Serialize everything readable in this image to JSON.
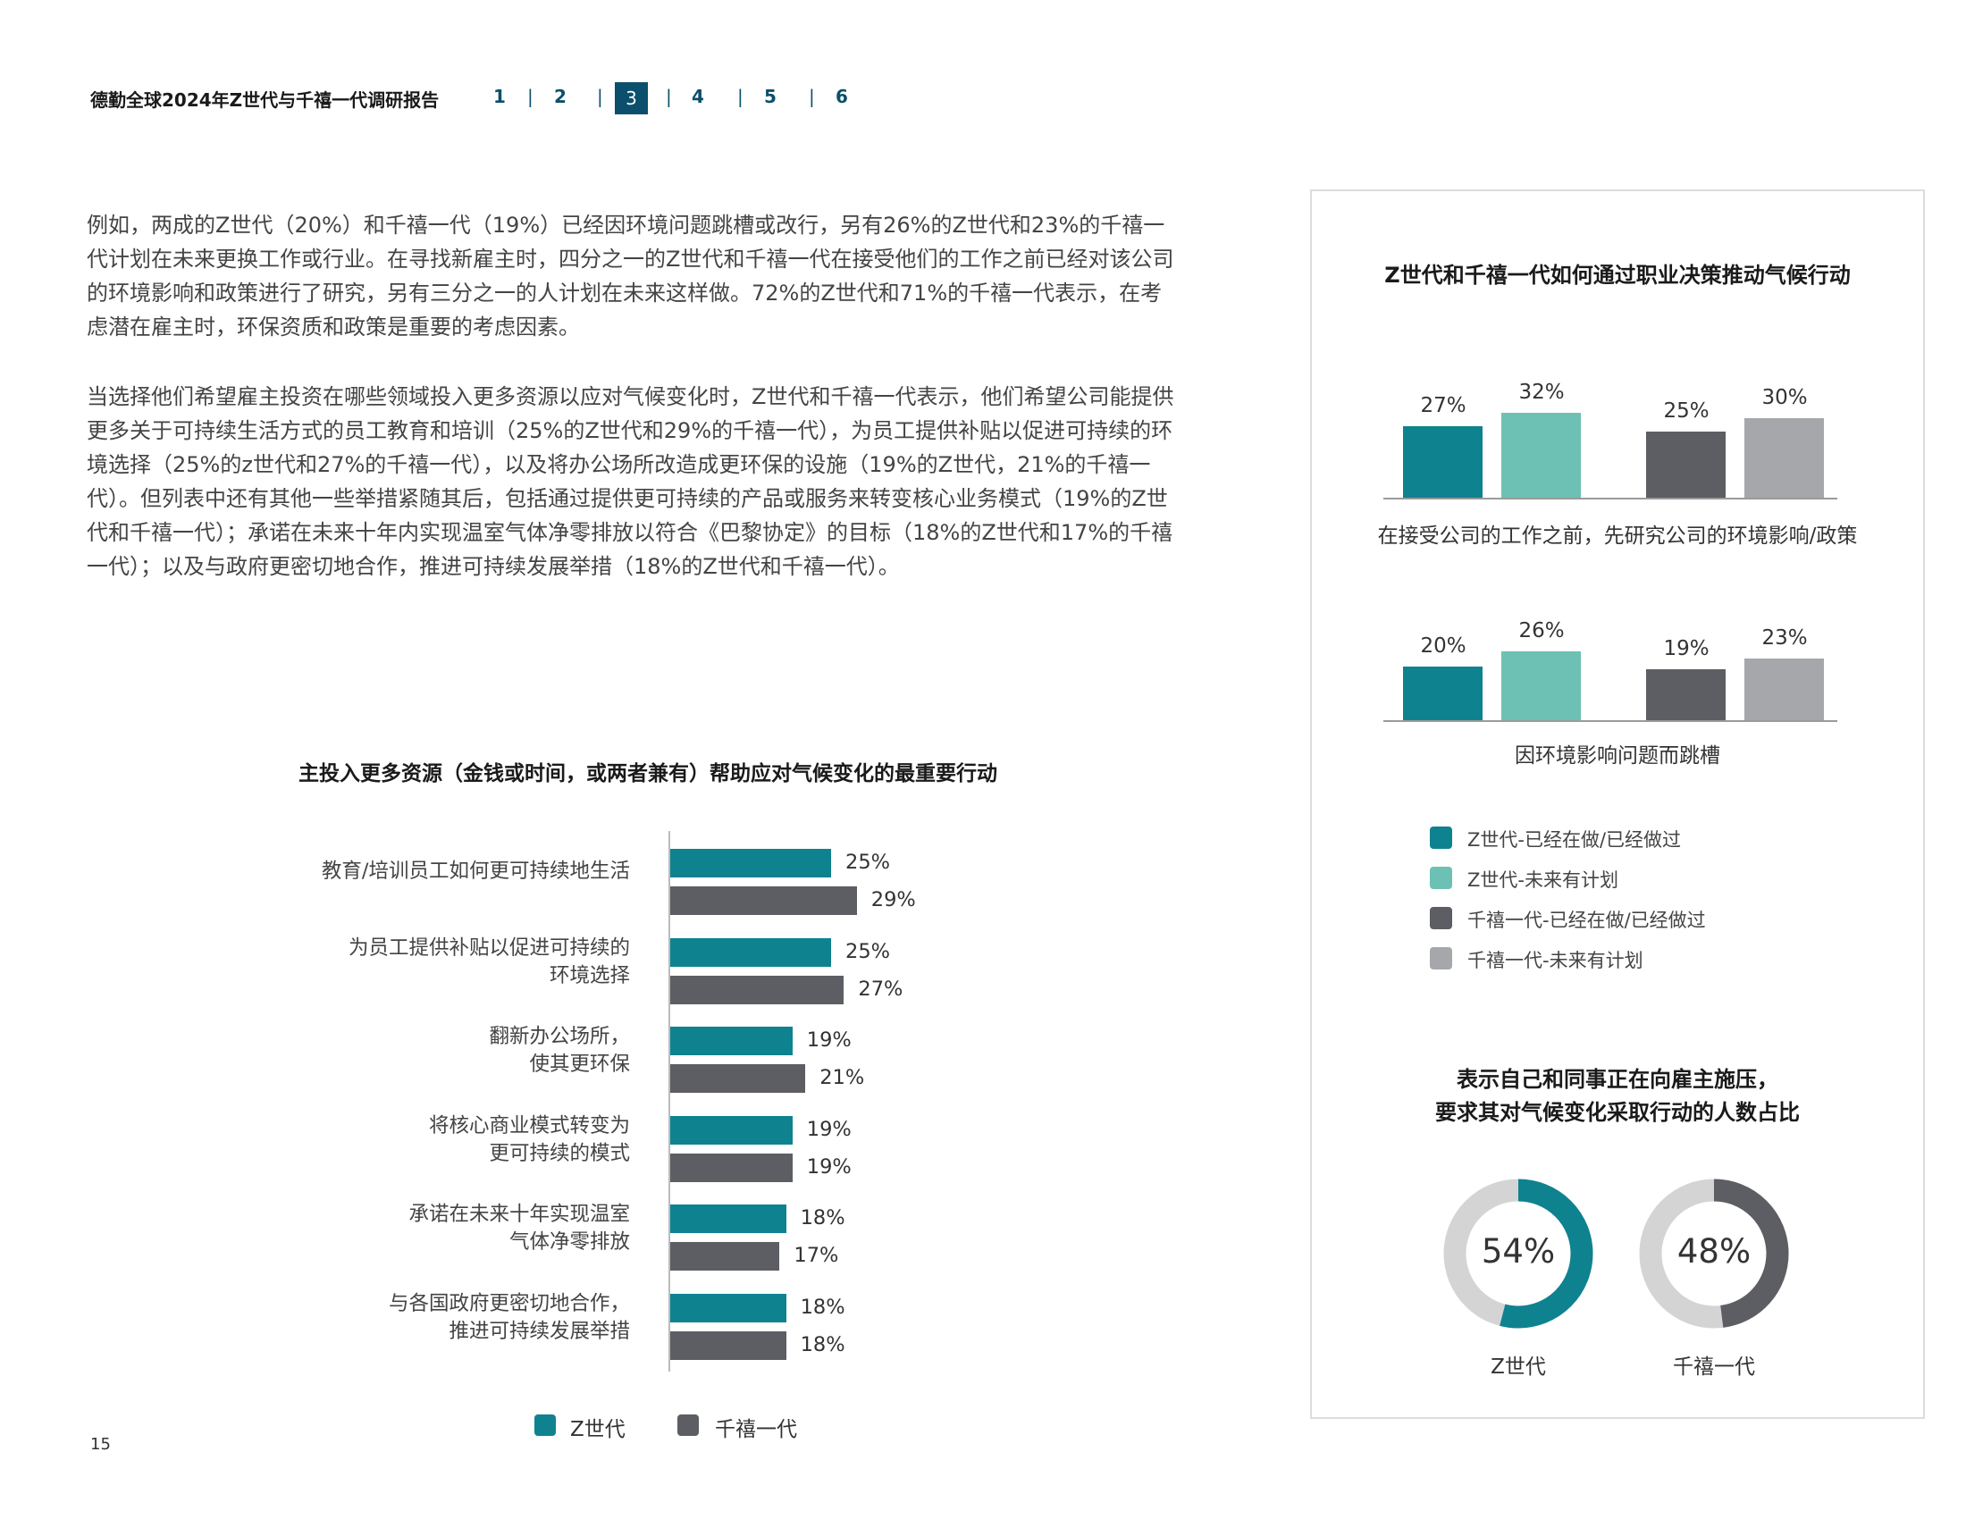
{
  "header": {
    "title": "德勤全球2024年Z世代与千禧一代调研报告",
    "nav": [
      "1",
      "2",
      "3",
      "4",
      "5",
      "6"
    ],
    "active": "3"
  },
  "body": {
    "paragraph1": "例如，两成的Z世代（20%）和千禧一代（19%）已经因环境问题跳槽或改行，另有26%的Z世代和23%的千禧一代计划在未来更换工作或行业。在寻找新雇主时，四分之一的Z世代和千禧一代在接受他们的工作之前已经对该公司的环境影响和政策进行了研究，另有三分之一的人计划在未来这样做。72%的Z世代和71%的千禧一代表示，在考虑潜在雇主时，环保资质和政策是重要的考虑因素。",
    "paragraph2": "当选择他们希望雇主投资在哪些领域投入更多资源以应对气候变化时，Z世代和千禧一代表示，他们希望公司能提供更多关于可持续生活方式的员工教育和培训（25%的Z世代和29%的千禧一代），为员工提供补贴以促进可持续的环境选择（25%的z世代和27%的千禧一代），以及将办公场所改造成更环保的设施（19%的Z世代，21%的千禧一代）。但列表中还有其他一些举措紧随其后，包括通过提供更可持续的产品或服务来转变核心业务模式（19%的Z世代和千禧一代）；承诺在未来十年内实现温室气体净零排放以符合《巴黎协定》的目标（18%的Z世代和17%的千禧一代）；以及与政府更密切地合作，推进可持续发展举措（18%的Z世代和千禧一代）。"
  },
  "chart_data": [
    {
      "type": "bar",
      "orientation": "horizontal",
      "title": "主投入更多资源（金钱或时间，或两者兼有）帮助应对气候变化的最重要行动",
      "categories": [
        [
          "教育/培训员工如何更可持续地生活"
        ],
        [
          "为员工提供补贴以促进可持续的",
          "环境选择"
        ],
        [
          "翻新办公场所，",
          "使其更环保"
        ],
        [
          "将核心商业模式转变为",
          "更可持续的模式"
        ],
        [
          "承诺在未来十年实现温室",
          "气体净零排放"
        ],
        [
          "与各国政府更密切地合作，",
          "推进可持续发展举措"
        ]
      ],
      "series": [
        {
          "name": "Z世代",
          "color": "#0f8290",
          "values": [
            25,
            25,
            19,
            19,
            18,
            18
          ],
          "labels": [
            "25%",
            "25%",
            "19%",
            "19%",
            "18%",
            "18%"
          ]
        },
        {
          "name": "千禧一代",
          "color": "#5c5e63",
          "values": [
            29,
            27,
            21,
            19,
            17,
            18
          ],
          "labels": [
            "29%",
            "27%",
            "21%",
            "19%",
            "17%",
            "18%"
          ]
        }
      ],
      "xlim": [
        0,
        40
      ]
    },
    {
      "type": "bar",
      "title": "Z世代和千禧一代如何通过职业决策推动气候行动",
      "groups": [
        {
          "caption": "在接受公司的工作之前，先研究公司的环境影响/政策",
          "values": [
            27,
            32,
            25,
            30
          ],
          "labels": [
            "27%",
            "32%",
            "25%",
            "30%"
          ]
        },
        {
          "caption": "因环境影响问题而跳槽",
          "values": [
            20,
            26,
            19,
            23
          ],
          "labels": [
            "20%",
            "26%",
            "19%",
            "23%"
          ]
        }
      ],
      "series": [
        {
          "name": "Z世代-已经在做/已经做过",
          "color": "#0f8290"
        },
        {
          "name": "Z世代-未来有计划",
          "color": "#6cc0b4"
        },
        {
          "name": "千禧一代-已经在做/已经做过",
          "color": "#5c5e63"
        },
        {
          "name": "千禧一代-未来有计划",
          "color": "#a5a7aa"
        }
      ]
    },
    {
      "type": "pie",
      "title_lines": [
        "表示自己和同事正在向雇主施压，",
        "要求其对气候变化采取行动的人数占比"
      ],
      "items": [
        {
          "name": "Z世代",
          "value": 54,
          "label": "54%",
          "color": "#0f8290"
        },
        {
          "name": "千禧一代",
          "value": 48,
          "label": "48%",
          "color": "#5c5e63"
        }
      ],
      "track_color": "#d4d4d4"
    }
  ],
  "page_number": "15"
}
